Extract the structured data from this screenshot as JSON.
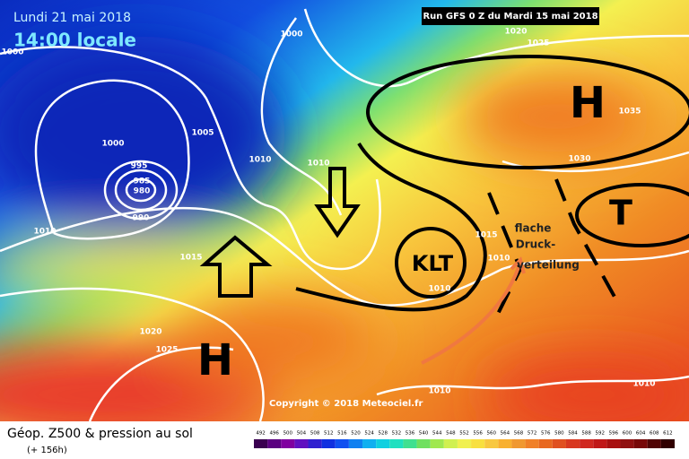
{
  "header": {
    "date": "Lundi 21 mai 2018",
    "time": "14:00 locale",
    "run": "Run GFS 0 Z du Mardi 15 mai 2018"
  },
  "footer": {
    "title": "Géop. Z500 & pression au sol",
    "lead": "(+ 156h)",
    "copyright": "Copyright © 2018 Meteociel.fr"
  },
  "scale": {
    "values": [
      492,
      496,
      500,
      504,
      508,
      512,
      516,
      520,
      524,
      528,
      532,
      536,
      540,
      544,
      548,
      552,
      556,
      560,
      564,
      568,
      572,
      576,
      580,
      584,
      588,
      592,
      596,
      600,
      604,
      608,
      612
    ]
  },
  "isobar_labels": [
    "1000",
    "1000",
    "1020",
    "1025",
    "1005",
    "1000",
    "995",
    "985",
    "980",
    "990",
    "1010",
    "1010",
    "1010",
    "1015",
    "1015",
    "1010",
    "1010",
    "1020",
    "1025",
    "1035",
    "1030",
    "1010",
    "1010"
  ],
  "annotations": [
    "H",
    "H",
    "T",
    "KLT",
    "flache",
    "Druck-",
    "verteilung"
  ]
}
